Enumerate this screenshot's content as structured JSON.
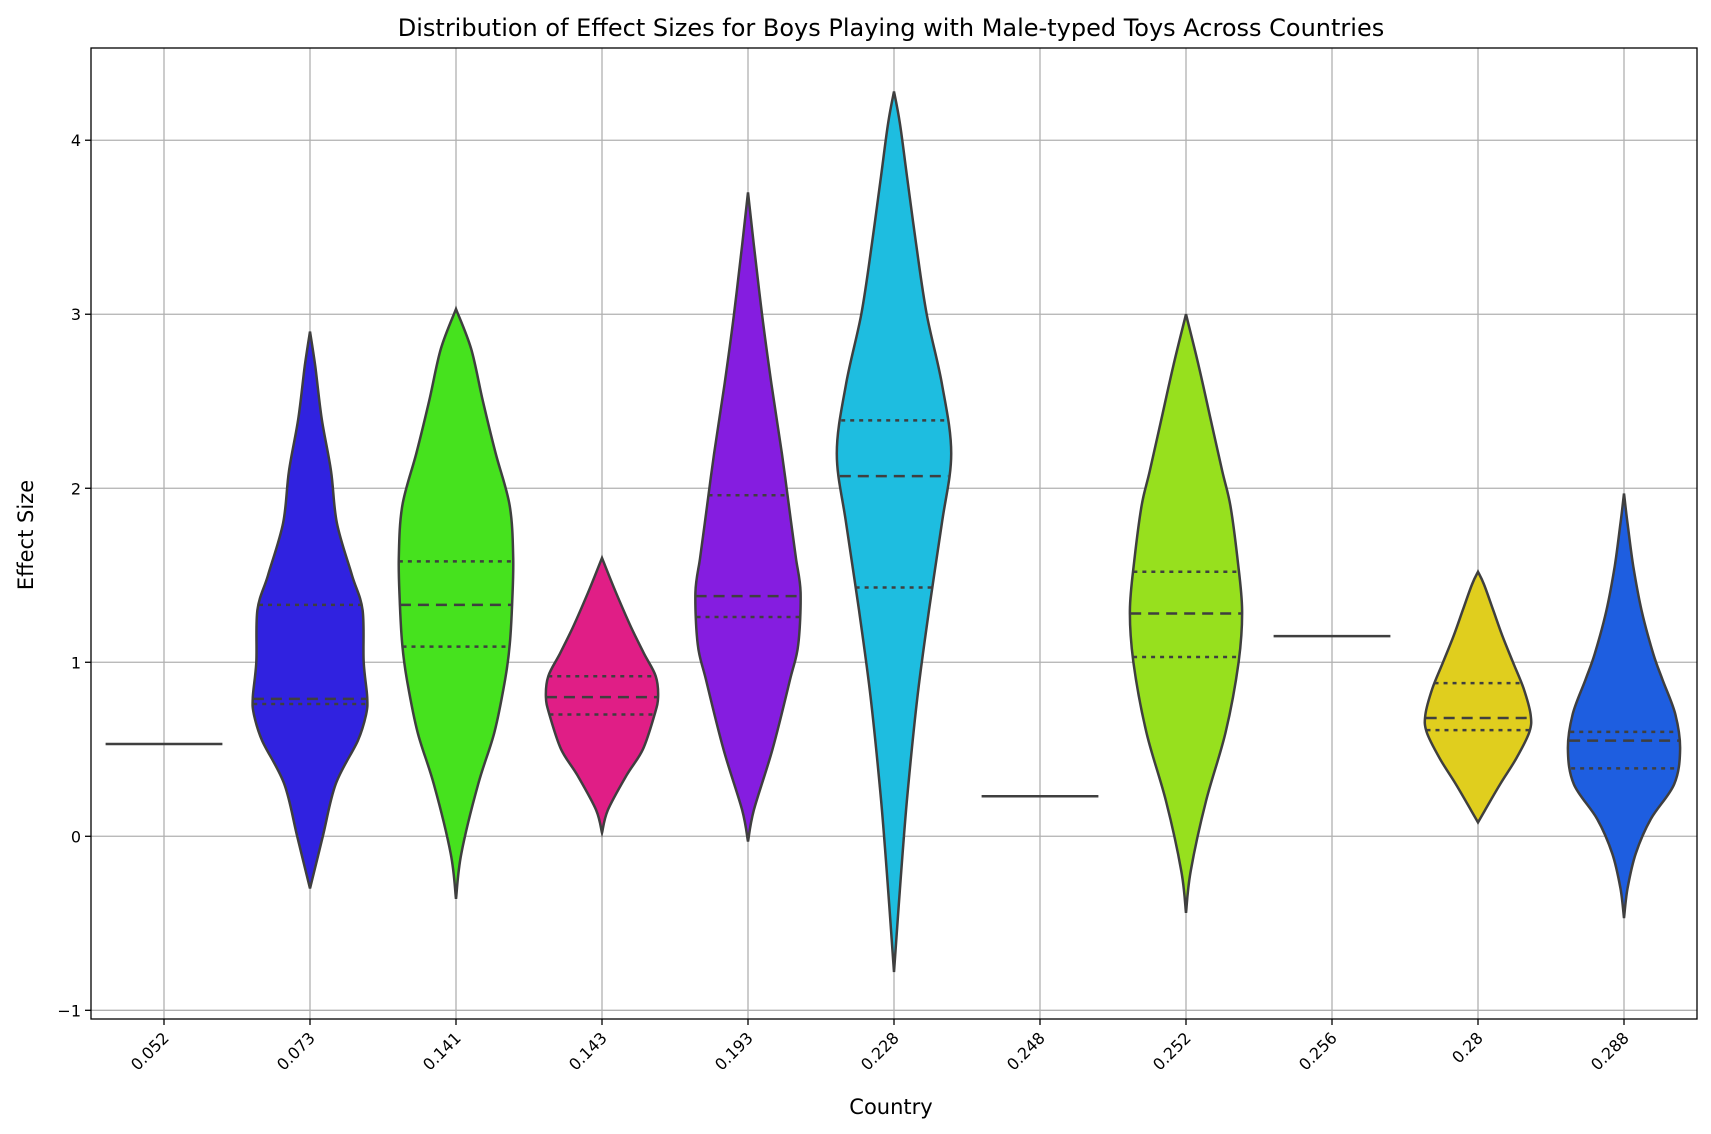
{
  "chart_data": {
    "type": "violin",
    "title": "Distribution of Effect Sizes for Boys Playing with Male-typed Toys Across Countries",
    "xlabel": "Country",
    "ylabel": "Effect Size",
    "ylim": [
      -1.05,
      4.53
    ],
    "yticks": [
      -1,
      0,
      1,
      2,
      3,
      4
    ],
    "grid": true,
    "inner": "quartile",
    "categories": [
      "0.052",
      "0.073",
      "0.141",
      "0.143",
      "0.193",
      "0.228",
      "0.248",
      "0.252",
      "0.256",
      "0.28",
      "0.288"
    ],
    "violins": [
      {
        "category": "0.052",
        "color": "#3a3a3a",
        "single_value": 0.53
      },
      {
        "category": "0.073",
        "color": "#3022e0",
        "min": -0.3,
        "max": 2.9,
        "q1": 0.76,
        "median": 0.79,
        "q3": 1.33,
        "density": [
          [
            -0.3,
            0.0
          ],
          [
            0.0,
            0.22
          ],
          [
            0.3,
            0.44
          ],
          [
            0.55,
            0.82
          ],
          [
            0.7,
            0.96
          ],
          [
            0.8,
            0.98
          ],
          [
            1.0,
            0.92
          ],
          [
            1.3,
            0.9
          ],
          [
            1.5,
            0.72
          ],
          [
            1.8,
            0.46
          ],
          [
            2.1,
            0.36
          ],
          [
            2.4,
            0.2
          ],
          [
            2.7,
            0.09
          ],
          [
            2.9,
            0.0
          ]
        ]
      },
      {
        "category": "0.141",
        "color": "#46e21e",
        "min": -0.36,
        "max": 3.03,
        "q1": 1.09,
        "median": 1.33,
        "q3": 1.58,
        "density": [
          [
            -0.36,
            0.0
          ],
          [
            -0.1,
            0.09
          ],
          [
            0.3,
            0.38
          ],
          [
            0.6,
            0.66
          ],
          [
            0.9,
            0.84
          ],
          [
            1.1,
            0.92
          ],
          [
            1.33,
            0.96
          ],
          [
            1.6,
            0.98
          ],
          [
            1.9,
            0.92
          ],
          [
            2.2,
            0.68
          ],
          [
            2.5,
            0.46
          ],
          [
            2.8,
            0.26
          ],
          [
            3.03,
            0.0
          ]
        ]
      },
      {
        "category": "0.143",
        "color": "#e01e86",
        "min": 0.02,
        "max": 1.6,
        "q1": 0.7,
        "median": 0.8,
        "q3": 0.92,
        "density": [
          [
            0.02,
            0.0
          ],
          [
            0.15,
            0.1
          ],
          [
            0.35,
            0.42
          ],
          [
            0.5,
            0.7
          ],
          [
            0.7,
            0.9
          ],
          [
            0.8,
            0.96
          ],
          [
            0.92,
            0.92
          ],
          [
            1.05,
            0.72
          ],
          [
            1.2,
            0.5
          ],
          [
            1.4,
            0.24
          ],
          [
            1.6,
            0.0
          ]
        ]
      },
      {
        "category": "0.193",
        "color": "#851de0",
        "min": -0.03,
        "max": 3.7,
        "q1": 1.26,
        "median": 1.38,
        "q3": 1.96,
        "density": [
          [
            -0.03,
            0.0
          ],
          [
            0.15,
            0.1
          ],
          [
            0.5,
            0.42
          ],
          [
            0.9,
            0.72
          ],
          [
            1.1,
            0.86
          ],
          [
            1.4,
            0.9
          ],
          [
            1.6,
            0.82
          ],
          [
            1.8,
            0.74
          ],
          [
            2.2,
            0.58
          ],
          [
            2.6,
            0.4
          ],
          [
            3.0,
            0.24
          ],
          [
            3.4,
            0.1
          ],
          [
            3.7,
            0.0
          ]
        ]
      },
      {
        "category": "0.228",
        "color": "#1ebde0",
        "min": -0.78,
        "max": 4.28,
        "q1": 1.43,
        "median": 2.07,
        "q3": 2.39,
        "density": [
          [
            -0.78,
            0.0
          ],
          [
            -0.4,
            0.08
          ],
          [
            0.2,
            0.22
          ],
          [
            0.8,
            0.4
          ],
          [
            1.3,
            0.6
          ],
          [
            1.8,
            0.82
          ],
          [
            2.2,
            0.98
          ],
          [
            2.6,
            0.82
          ],
          [
            3.0,
            0.56
          ],
          [
            3.4,
            0.38
          ],
          [
            3.8,
            0.22
          ],
          [
            4.1,
            0.1
          ],
          [
            4.28,
            0.0
          ]
        ]
      },
      {
        "category": "0.248",
        "color": "#3a3a3a",
        "single_value": 0.23
      },
      {
        "category": "0.252",
        "color": "#97e01e",
        "min": -0.44,
        "max": 3.0,
        "q1": 1.03,
        "median": 1.28,
        "q3": 1.52,
        "density": [
          [
            -0.44,
            0.0
          ],
          [
            -0.2,
            0.08
          ],
          [
            0.2,
            0.34
          ],
          [
            0.6,
            0.68
          ],
          [
            1.0,
            0.9
          ],
          [
            1.3,
            0.96
          ],
          [
            1.6,
            0.88
          ],
          [
            1.9,
            0.76
          ],
          [
            2.1,
            0.62
          ],
          [
            2.4,
            0.42
          ],
          [
            2.7,
            0.22
          ],
          [
            3.0,
            0.0
          ]
        ]
      },
      {
        "category": "0.256",
        "color": "#3a3a3a",
        "single_value": 1.15
      },
      {
        "category": "0.28",
        "color": "#e0ce1e",
        "min": 0.08,
        "max": 1.52,
        "q1": 0.61,
        "median": 0.68,
        "q3": 0.88,
        "density": [
          [
            0.08,
            0.0
          ],
          [
            0.15,
            0.12
          ],
          [
            0.3,
            0.38
          ],
          [
            0.45,
            0.66
          ],
          [
            0.6,
            0.88
          ],
          [
            0.7,
            0.9
          ],
          [
            0.85,
            0.78
          ],
          [
            1.0,
            0.6
          ],
          [
            1.15,
            0.42
          ],
          [
            1.3,
            0.26
          ],
          [
            1.45,
            0.1
          ],
          [
            1.52,
            0.0
          ]
        ]
      },
      {
        "category": "0.288",
        "color": "#1e5ee0",
        "min": -0.47,
        "max": 1.97,
        "q1": 0.39,
        "median": 0.55,
        "q3": 0.6,
        "density": [
          [
            -0.47,
            0.0
          ],
          [
            -0.3,
            0.06
          ],
          [
            -0.1,
            0.2
          ],
          [
            0.1,
            0.46
          ],
          [
            0.3,
            0.86
          ],
          [
            0.5,
            0.96
          ],
          [
            0.7,
            0.88
          ],
          [
            0.9,
            0.66
          ],
          [
            1.05,
            0.5
          ],
          [
            1.3,
            0.3
          ],
          [
            1.55,
            0.16
          ],
          [
            1.8,
            0.06
          ],
          [
            1.97,
            0.0
          ]
        ]
      }
    ]
  }
}
